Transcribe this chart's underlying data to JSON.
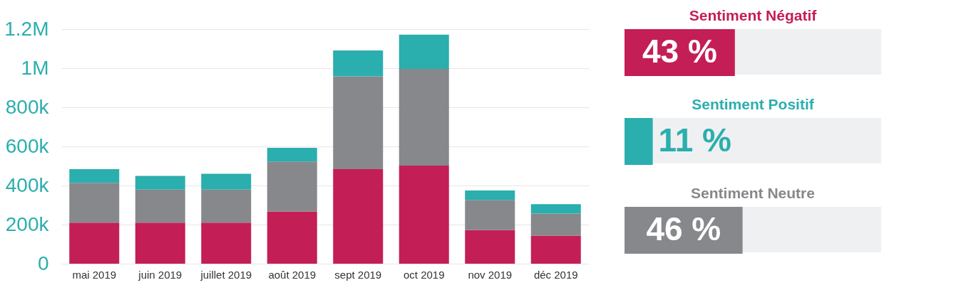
{
  "chart_data": [
    {
      "type": "bar",
      "stacked": true,
      "categories": [
        "mai 2019",
        "juin 2019",
        "juillet 2019",
        "août 2019",
        "sept 2019",
        "oct 2019",
        "nov 2019",
        "déc 2019"
      ],
      "series": [
        {
          "color": "#c41e56",
          "values": [
            210000,
            210000,
            210000,
            267000,
            484000,
            502000,
            172000,
            144000
          ]
        },
        {
          "color": "#87888c",
          "values": [
            204000,
            169000,
            169000,
            256000,
            474000,
            494000,
            154000,
            112000
          ]
        },
        {
          "color": "#2baeae",
          "values": [
            70000,
            70000,
            81000,
            70000,
            133000,
            176000,
            49000,
            49000
          ]
        }
      ],
      "ylim": [
        0,
        1200000
      ],
      "yticks": [
        0,
        {
          "value": 200000,
          "label": "200k"
        },
        {
          "value": 400000,
          "label": "400k"
        },
        {
          "value": 600000,
          "label": "600k"
        },
        {
          "value": 800000,
          "label": "800k"
        },
        {
          "value": 1000000,
          "label": "1M"
        },
        {
          "value": 1200000,
          "label": "1.2M"
        }
      ],
      "grid": "y",
      "legend": false
    },
    {
      "type": "bar",
      "orientation": "horizontal",
      "categories": [
        "Sentiment Négatif",
        "Sentiment Positif",
        "Sentiment Neutre"
      ],
      "values": [
        43,
        11,
        46
      ],
      "colors": [
        "#c41e56",
        "#2baeae",
        "#87888c"
      ],
      "value_labels": [
        "43 %",
        "11 %",
        "46 %"
      ],
      "xlim": [
        0,
        100
      ],
      "tick_labels": false
    }
  ]
}
